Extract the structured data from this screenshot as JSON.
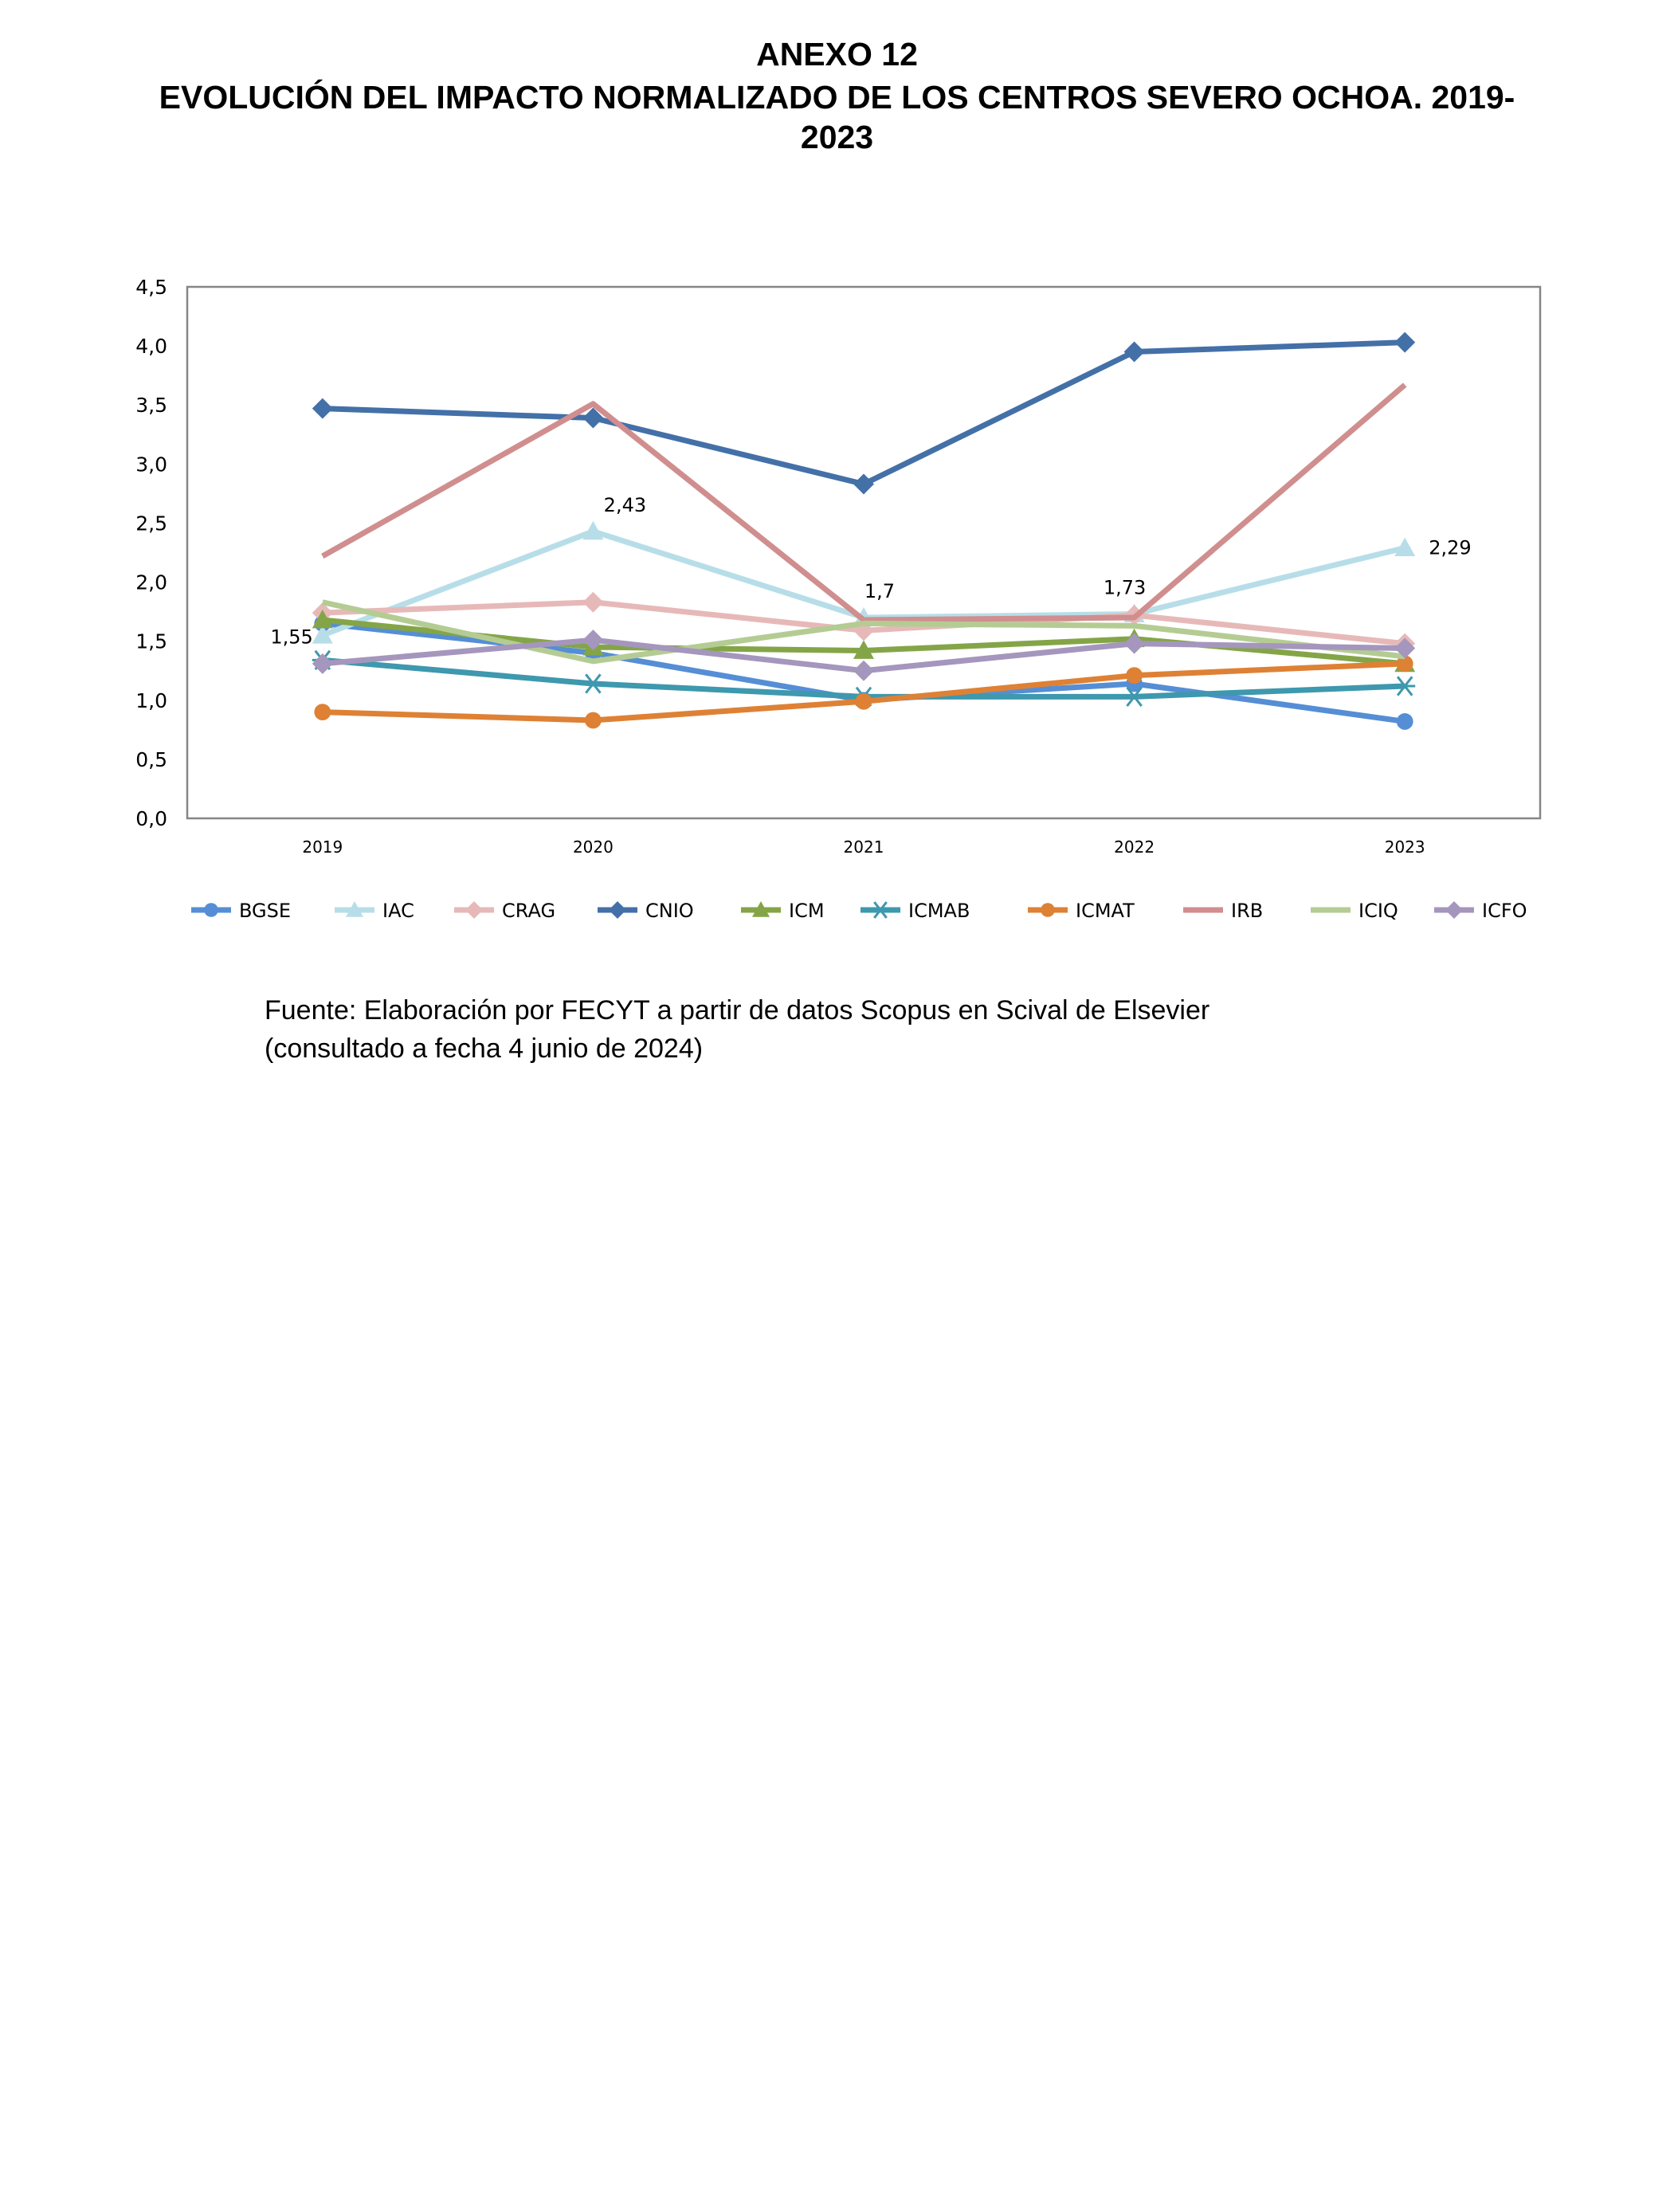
{
  "header": {
    "line1": "ANEXO 12",
    "line2": "EVOLUCIÓN DEL IMPACTO NORMALIZADO DE LOS CENTROS SEVERO OCHOA. 2019-",
    "line3": "2023"
  },
  "source": {
    "line1": "Fuente: Elaboración por FECYT a partir de datos Scopus en Scival de Elsevier",
    "line2": "(consultado a fecha 4 junio de 2024)"
  },
  "chart_data": {
    "type": "line",
    "title": "",
    "xlabel": "",
    "ylabel": "",
    "categories": [
      "2019",
      "2020",
      "2021",
      "2022",
      "2023"
    ],
    "ylim": [
      0,
      4.5
    ],
    "yticks": [
      "0,0",
      "0,5",
      "1,0",
      "1,5",
      "2,0",
      "2,5",
      "3,0",
      "3,5",
      "4,0",
      "4,5"
    ],
    "grid": false,
    "legend": "bottom",
    "series": [
      {
        "name": "BGSE",
        "color": "#558ED5",
        "marker": "circle",
        "values": [
          1.65,
          1.4,
          1.0,
          1.14,
          0.82
        ]
      },
      {
        "name": "IAC",
        "color": "#B7DEE8",
        "marker": "triangle",
        "values": [
          1.55,
          2.43,
          1.7,
          1.73,
          2.29
        ],
        "labels": [
          "1,55",
          "2,43",
          "1,7",
          "1,73",
          "2,29"
        ]
      },
      {
        "name": "CRAG",
        "color": "#E6B9B8",
        "marker": "diamond",
        "values": [
          1.74,
          1.83,
          1.59,
          1.72,
          1.48
        ]
      },
      {
        "name": "CNIO",
        "color": "#4470A8",
        "marker": "diamond",
        "values": [
          3.47,
          3.39,
          2.83,
          3.95,
          4.03
        ]
      },
      {
        "name": "ICM",
        "color": "#84A547",
        "marker": "triangle",
        "values": [
          1.68,
          1.45,
          1.42,
          1.52,
          1.31
        ]
      },
      {
        "name": "ICMAB",
        "color": "#3E98AE",
        "marker": "star",
        "values": [
          1.34,
          1.14,
          1.03,
          1.03,
          1.12
        ]
      },
      {
        "name": "ICMAT",
        "color": "#DE8135",
        "marker": "circle",
        "values": [
          0.9,
          0.83,
          0.99,
          1.21,
          1.31
        ]
      },
      {
        "name": "IRB",
        "color": "#D08E8E",
        "marker": "none",
        "values": [
          2.22,
          3.51,
          1.68,
          1.7,
          3.67
        ]
      },
      {
        "name": "ICIQ",
        "color": "#B4CC93",
        "marker": "none",
        "values": [
          1.83,
          1.33,
          1.65,
          1.63,
          1.37
        ]
      },
      {
        "name": "ICFO",
        "color": "#A596BD",
        "marker": "diamond",
        "values": [
          1.31,
          1.51,
          1.25,
          1.48,
          1.44
        ]
      }
    ]
  }
}
